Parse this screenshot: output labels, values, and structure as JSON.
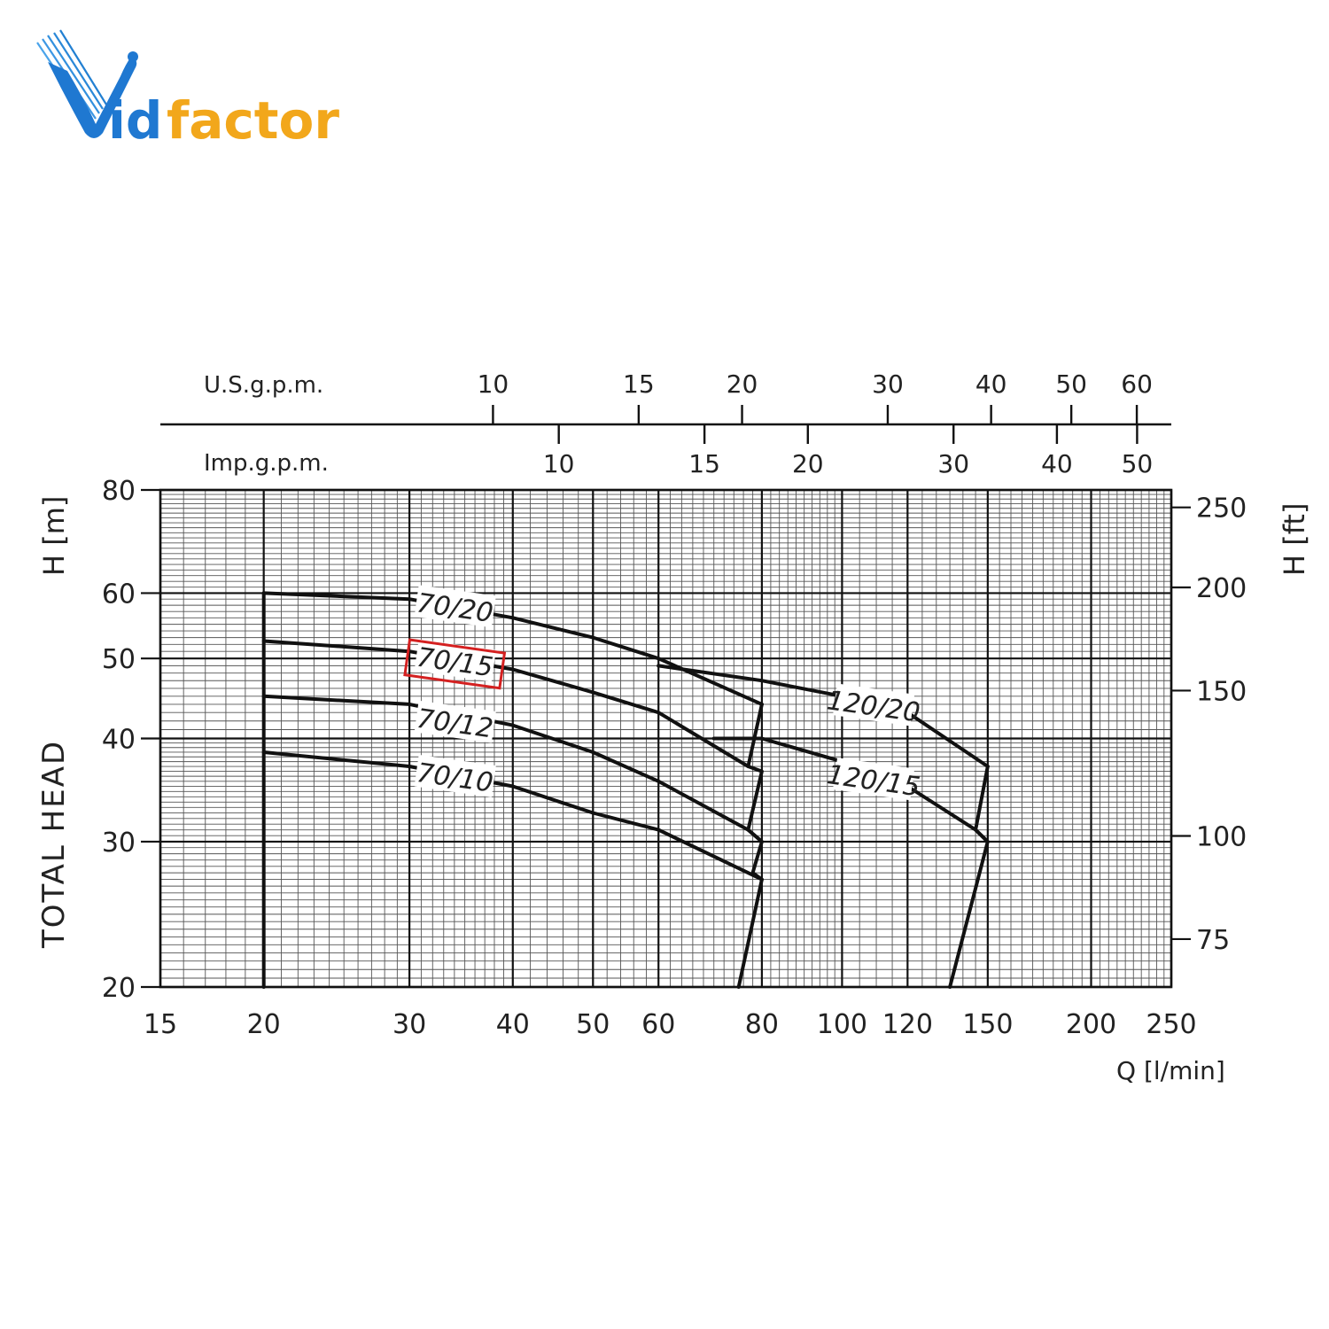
{
  "brand": {
    "name": "Vidfactor",
    "letters_blue": "V",
    "letters_blue2": "id",
    "letters_orange": "factor",
    "colors": {
      "blue": "#1f78d1",
      "orange": "#f2a71b"
    }
  },
  "chart_data": {
    "type": "line",
    "title": "",
    "ylabel": "TOTAL HEAD",
    "ylabel_unit": "H [m]",
    "ylabel_right": "H [ft]",
    "xlabel": "Q [l/min]",
    "x_scale": "log",
    "y_scale": "log",
    "xlim": [
      15,
      250
    ],
    "ylim": [
      20,
      80
    ],
    "x_ticks": [
      15,
      20,
      30,
      40,
      50,
      60,
      80,
      100,
      120,
      150,
      200,
      250
    ],
    "y_ticks": [
      20,
      30,
      40,
      50,
      60,
      80
    ],
    "y_ticks_right": [
      75,
      100,
      150,
      200,
      250
    ],
    "usgpm_label": "U.S.g.p.m.",
    "usgpm_ticks": [
      10,
      15,
      20,
      30,
      40,
      50,
      60
    ],
    "impgpm_label": "Imp.g.p.m.",
    "impgpm_ticks": [
      10,
      15,
      20,
      30,
      40,
      50
    ],
    "highlighted_series": "70/15",
    "highlight_color": "#d42020",
    "series": [
      {
        "name": "70/20",
        "x": [
          20,
          30,
          40,
          50,
          60,
          80
        ],
        "y": [
          60,
          59,
          56,
          53,
          50,
          44
        ]
      },
      {
        "name": "70/15",
        "x": [
          20,
          30,
          40,
          50,
          60,
          77
        ],
        "y": [
          52.5,
          51,
          48.5,
          45.5,
          43,
          37
        ]
      },
      {
        "name": "70/12",
        "x": [
          20,
          30,
          40,
          50,
          60,
          77,
          80
        ],
        "y": [
          45,
          44,
          41.5,
          38.5,
          35.5,
          31,
          30
        ]
      },
      {
        "name": "70/10",
        "x": [
          20,
          30,
          40,
          50,
          60,
          80
        ],
        "y": [
          38.5,
          37,
          35,
          32.5,
          31,
          27
        ]
      },
      {
        "name": "120/20",
        "x": [
          60,
          80,
          100,
          120,
          150
        ],
        "y": [
          49,
          47,
          45,
          43,
          37
        ]
      },
      {
        "name": "120/15",
        "x": [
          70,
          80,
          100,
          120,
          145,
          150
        ],
        "y": [
          40,
          40,
          37.5,
          35,
          31,
          30
        ]
      },
      {
        "name": "",
        "x": [
          20,
          20
        ],
        "y": [
          20,
          60
        ]
      },
      {
        "name": "",
        "x": [
          80,
          77,
          80,
          77,
          80,
          78,
          80,
          75
        ],
        "y": [
          44,
          37,
          36.5,
          31,
          30,
          27.5,
          27,
          20
        ]
      },
      {
        "name": "",
        "x": [
          150,
          145,
          150,
          135
        ],
        "y": [
          37,
          31,
          30,
          20
        ]
      }
    ]
  }
}
